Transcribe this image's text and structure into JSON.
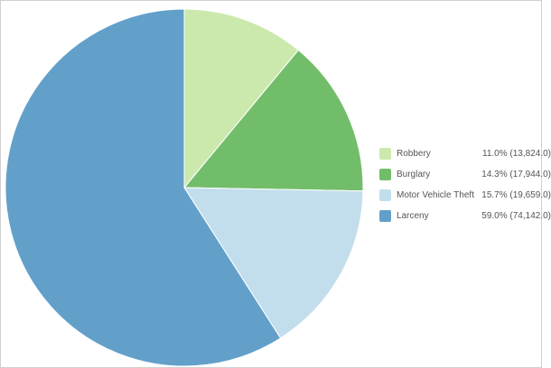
{
  "chart_data": {
    "type": "pie",
    "start": "top",
    "direction": "clockwise",
    "legend_position": "right",
    "slices": [
      {
        "label": "Robbery",
        "percent": "11.0%",
        "value": 13824.0,
        "value_text": "(13,824.0)",
        "color": "#cce9ad"
      },
      {
        "label": "Burglary",
        "percent": "14.3%",
        "value": 17944.0,
        "value_text": "(17,944.0)",
        "color": "#72bd6a"
      },
      {
        "label": "Motor Vehicle Theft",
        "percent": "15.7%",
        "value": 19659.0,
        "value_text": "(19,659.0)",
        "color": "#c2deec"
      },
      {
        "label": "Larceny",
        "percent": "59.0%",
        "value": 74142.0,
        "value_text": "(74,142.0)",
        "color": "#62a0ca"
      }
    ]
  }
}
